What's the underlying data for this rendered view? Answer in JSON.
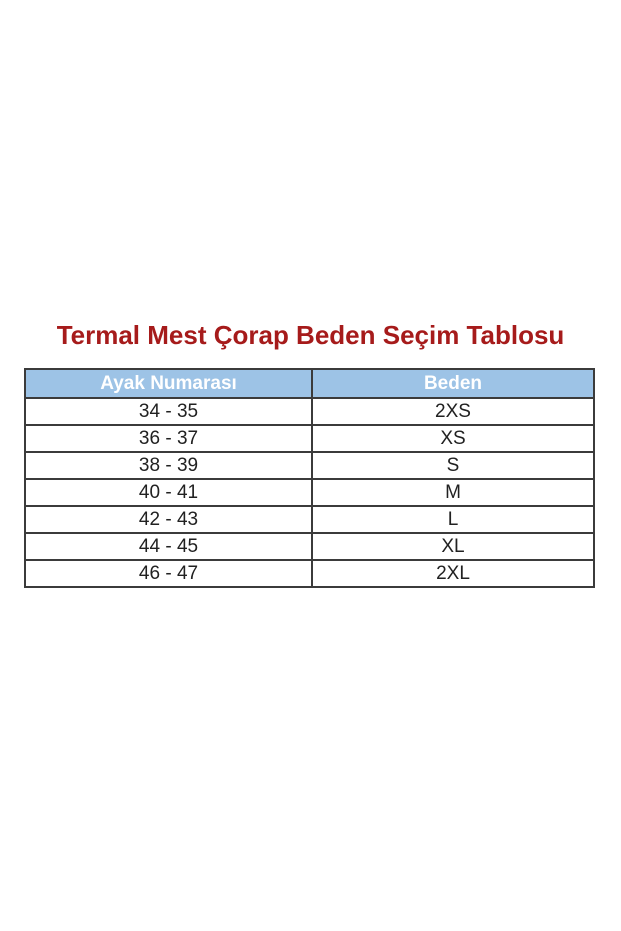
{
  "title": {
    "text": "Termal Mest Çorap Beden Seçim Tablosu"
  },
  "table": {
    "columns": [
      "Ayak Numarası",
      "Beden"
    ],
    "rows": [
      [
        "34 - 35",
        "2XS"
      ],
      [
        "36 - 37",
        "XS"
      ],
      [
        "38 - 39",
        "S"
      ],
      [
        "40 - 41",
        "M"
      ],
      [
        "42 - 43",
        "L"
      ],
      [
        "44 - 45",
        "XL"
      ],
      [
        "46 - 47",
        "2XL"
      ]
    ]
  },
  "colors": {
    "page_bg": "#FFFFFF",
    "title_color": "#A61B1B",
    "header_bg": "#9DC3E6",
    "header_text": "#FFFFFF",
    "border": "#3B3B3B",
    "cell_text": "#212121"
  }
}
